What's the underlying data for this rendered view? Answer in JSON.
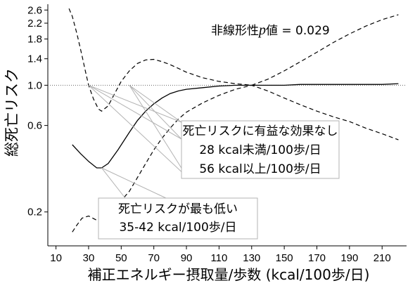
{
  "chart_data": {
    "type": "line",
    "title": "",
    "xlabel": "補正エネルギー摂取量/歩数 (kcal/100歩/日)",
    "ylabel": "総死亡リスク",
    "xlim": [
      5,
      225
    ],
    "ylim_log": [
      0.13,
      2.75
    ],
    "y_scale": "log",
    "x_ticks": [
      10,
      30,
      50,
      70,
      90,
      110,
      130,
      150,
      170,
      190,
      210
    ],
    "y_ticks": [
      0.2,
      0.6,
      1.0,
      1.4,
      1.8,
      2.2,
      2.6
    ],
    "reference_line": {
      "y": 1.0,
      "style": "dotted"
    },
    "grid": false,
    "series": [
      {
        "role": "point_estimate",
        "style": "solid",
        "x": [
          20,
          25,
          30,
          35,
          38,
          42,
          48,
          55,
          60,
          65,
          70,
          75,
          80,
          85,
          90,
          100,
          110,
          120,
          130,
          140,
          150,
          160,
          170,
          180,
          190,
          200,
          210,
          220
        ],
        "y": [
          0.47,
          0.42,
          0.38,
          0.35,
          0.35,
          0.37,
          0.44,
          0.55,
          0.64,
          0.72,
          0.79,
          0.85,
          0.9,
          0.93,
          0.95,
          0.97,
          0.99,
          1.0,
          1.0,
          1.0,
          1.0,
          1.01,
          1.01,
          1.01,
          1.01,
          1.01,
          1.01,
          1.02
        ]
      },
      {
        "role": "upper_ci",
        "style": "dashed",
        "x": [
          18,
          20,
          23,
          26,
          28,
          30,
          33,
          36,
          38,
          42,
          46,
          50,
          55,
          60,
          65,
          70,
          75,
          80,
          85,
          90,
          100,
          110,
          120,
          130,
          140,
          150,
          160,
          170,
          180,
          190,
          200,
          210,
          220
        ],
        "y": [
          2.65,
          2.4,
          1.9,
          1.45,
          1.2,
          1.0,
          0.84,
          0.74,
          0.72,
          0.77,
          0.9,
          1.05,
          1.2,
          1.32,
          1.38,
          1.39,
          1.35,
          1.3,
          1.24,
          1.18,
          1.1,
          1.05,
          1.02,
          1.0,
          1.08,
          1.2,
          1.35,
          1.52,
          1.72,
          1.92,
          2.12,
          2.3,
          2.45
        ]
      },
      {
        "role": "lower_ci",
        "style": "dashed",
        "x": [
          20,
          23,
          26,
          30,
          35,
          38,
          42,
          48,
          55,
          60,
          65,
          70,
          75,
          80,
          85,
          90,
          100,
          110,
          120,
          130,
          140,
          150,
          160,
          170,
          180,
          190,
          200,
          210,
          220
        ],
        "y": [
          0.155,
          0.17,
          0.185,
          0.19,
          0.18,
          0.18,
          0.2,
          0.22,
          0.26,
          0.31,
          0.37,
          0.44,
          0.51,
          0.58,
          0.65,
          0.71,
          0.8,
          0.88,
          0.95,
          1.0,
          0.93,
          0.85,
          0.78,
          0.72,
          0.67,
          0.63,
          0.58,
          0.54,
          0.5
        ]
      }
    ],
    "annotations": [
      {
        "id": "nonlinear",
        "lines": [
          "非線形性",
          "p",
          "値 = 0.029"
        ]
      },
      {
        "id": "no-effect",
        "lines": [
          "死亡リスクに有益な効果なし",
          "28 kcal未満/100歩/日",
          "56 kcal以上/100歩/日"
        ],
        "targets": [
          [
            30,
            1.0
          ],
          [
            55,
            1.0
          ]
        ]
      },
      {
        "id": "lowest",
        "lines": [
          "死亡リスクが最も低い",
          "35-42 kcal/100歩/日"
        ],
        "targets": [
          [
            38,
            0.35
          ]
        ]
      }
    ]
  }
}
